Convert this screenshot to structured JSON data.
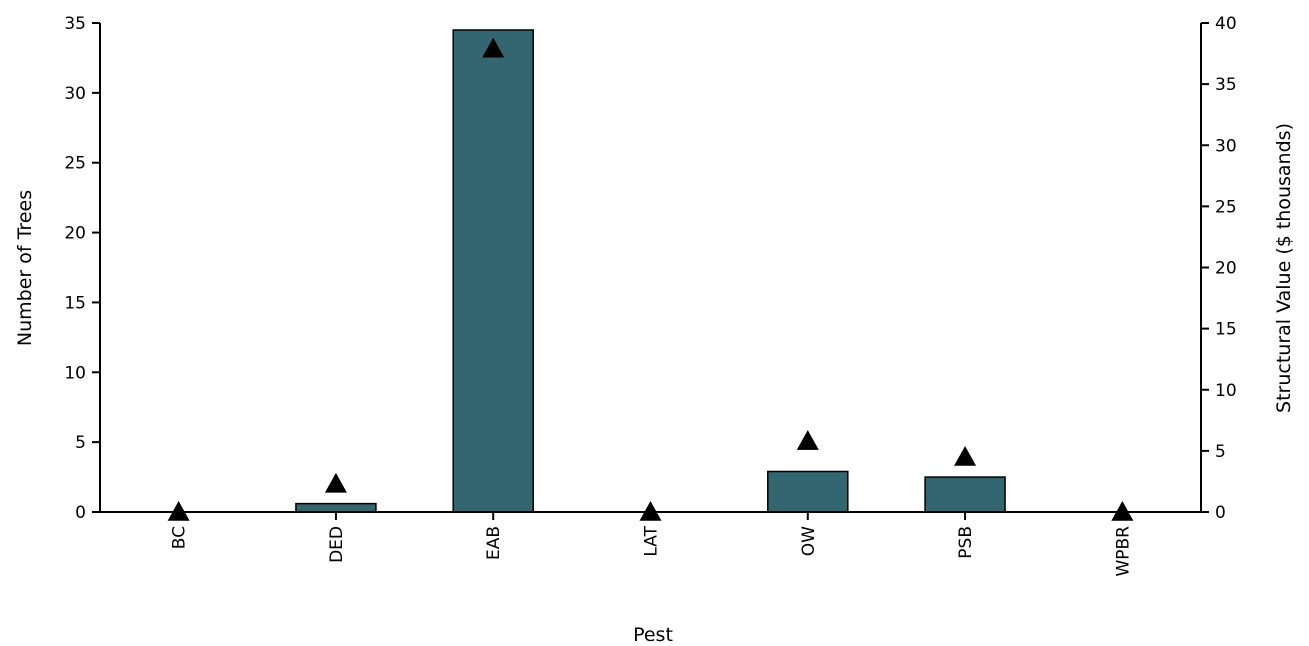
{
  "chart_data": {
    "type": "bar",
    "categories": [
      "BC",
      "DED",
      "EAB",
      "LAT",
      "OW",
      "PSB",
      "WPBR"
    ],
    "series": [
      {
        "name": "Number of Trees",
        "kind": "bar",
        "axis": "left",
        "values": [
          0,
          0.6,
          34.5,
          0,
          2.9,
          2.5,
          0
        ]
      },
      {
        "name": "Structural Value ($ thousands)",
        "kind": "marker",
        "marker": "triangle",
        "axis": "right",
        "values": [
          0,
          2.3,
          37.9,
          0,
          5.8,
          4.5,
          0
        ]
      }
    ],
    "xlabel": "Pest",
    "ylabel": "Number of Trees",
    "y2label": "Structural Value ($ thousands)",
    "ylim": [
      0,
      35
    ],
    "y2lim": [
      0,
      40
    ],
    "yticks": [
      "0",
      "5",
      "10",
      "15",
      "20",
      "25",
      "30",
      "35"
    ],
    "y2ticks": [
      "0",
      "5",
      "10",
      "15",
      "20",
      "25",
      "30",
      "35",
      "40"
    ],
    "grid": false,
    "legend": "none",
    "colors": {
      "bar": "#336670",
      "marker": "#000000",
      "axis": "#000000"
    }
  }
}
